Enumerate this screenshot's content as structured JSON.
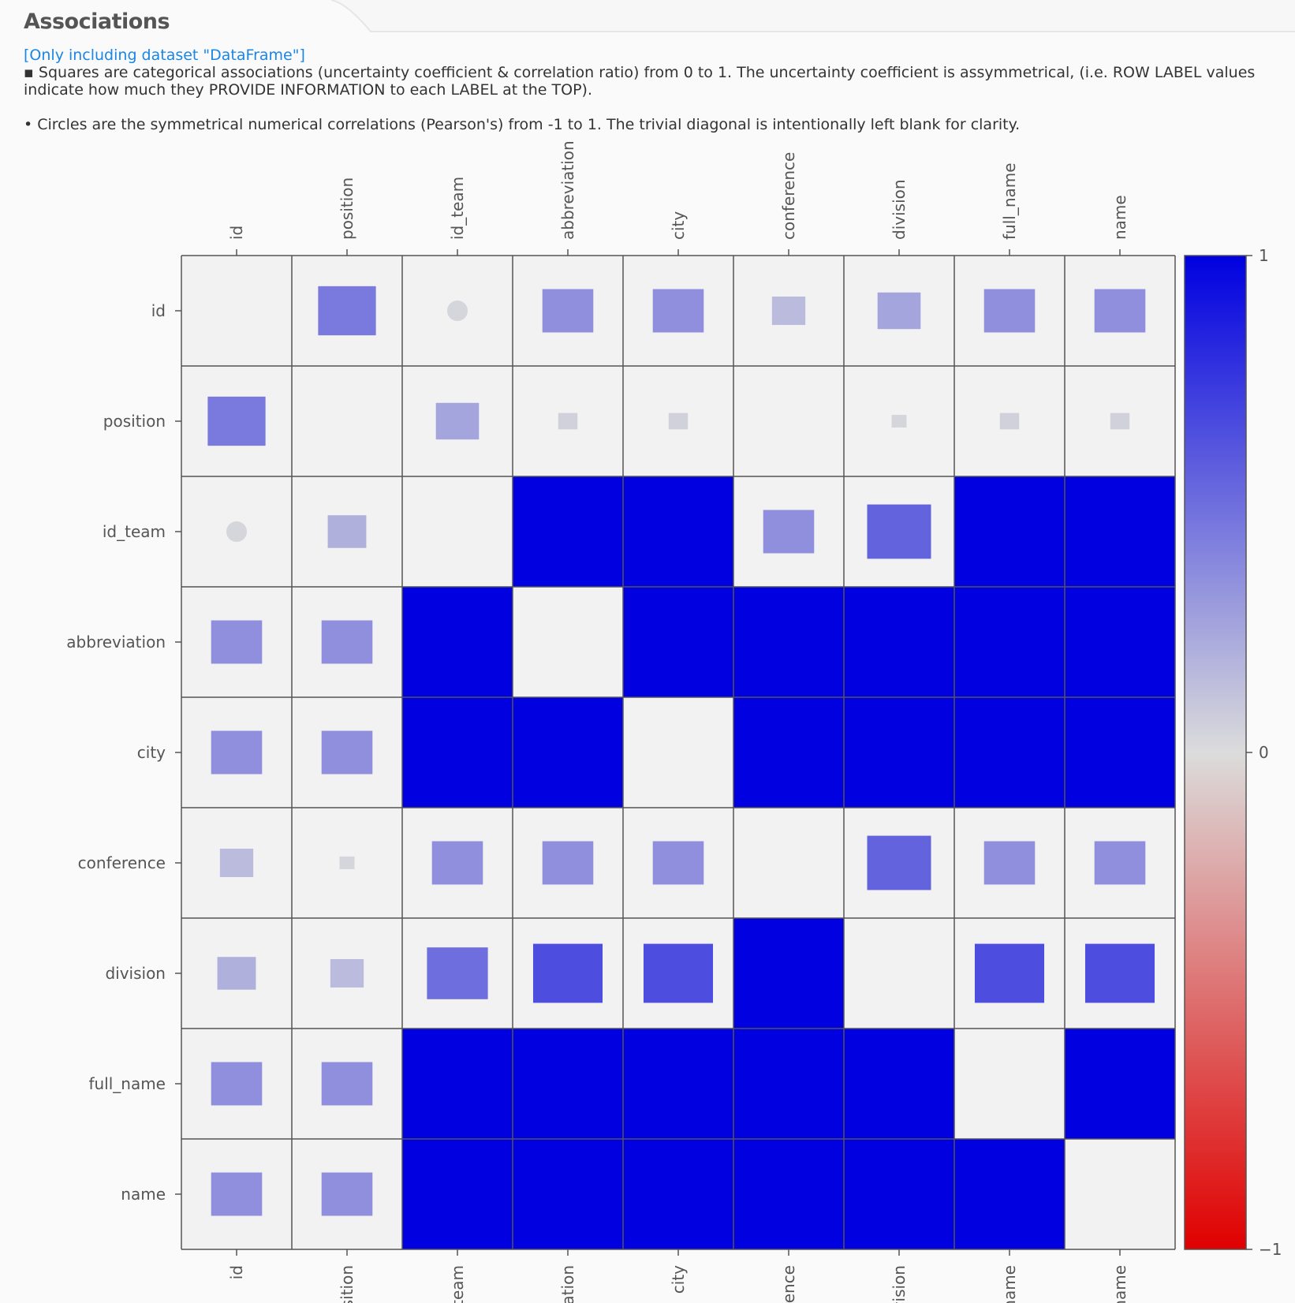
{
  "header": {
    "title": "Associations",
    "dataset_note": "[Only including dataset \"DataFrame\"]",
    "desc_squares": "▪ Squares are categorical associations (uncertainty coefficient & correlation ratio) from 0 to 1. The uncertainty coefficient is assymmetrical, (i.e. ROW LABEL values indicate how much they PROVIDE INFORMATION to each LABEL at the TOP).",
    "desc_circles": "• Circles are the symmetrical numerical correlations (Pearson's) from -1 to 1. The trivial diagonal is intentionally left blank for clarity."
  },
  "colors": {
    "positive": "#0000e0",
    "neutral": "#dcdcdc",
    "negative": "#e00000",
    "grid": "#555555",
    "cell_bg": "#f2f2f2"
  },
  "chart_data": {
    "type": "heatmap",
    "labels": [
      "id",
      "position",
      "id_team",
      "abbreviation",
      "city",
      "conference",
      "division",
      "full_name",
      "name"
    ],
    "colorbar": {
      "ticks": [
        {
          "value": 1,
          "label": "1"
        },
        {
          "value": 0,
          "label": "0"
        },
        {
          "value": -1,
          "label": "−1"
        }
      ],
      "range": [
        -1,
        1
      ]
    },
    "rows": [
      {
        "label": "id",
        "values": [
          null,
          0.45,
          0.03,
          0.35,
          0.35,
          0.15,
          0.25,
          0.35,
          0.35
        ],
        "kinds": [
          "none",
          "square",
          "circle",
          "square",
          "square",
          "square",
          "square",
          "square",
          "square"
        ]
      },
      {
        "label": "position",
        "values": [
          0.45,
          null,
          0.25,
          0.05,
          0.05,
          0.0,
          0.03,
          0.05,
          0.05
        ],
        "kinds": [
          "square",
          "none",
          "square",
          "square",
          "square",
          "square",
          "square",
          "square",
          "square"
        ]
      },
      {
        "label": "id_team",
        "values": [
          0.03,
          0.2,
          null,
          1.0,
          1.0,
          0.35,
          0.55,
          1.0,
          1.0
        ],
        "kinds": [
          "circle",
          "square",
          "none",
          "square",
          "square",
          "square",
          "square",
          "square",
          "square"
        ]
      },
      {
        "label": "abbreviation",
        "values": [
          0.35,
          0.35,
          1.0,
          null,
          1.0,
          1.0,
          1.0,
          1.0,
          1.0
        ],
        "kinds": [
          "square",
          "square",
          "square",
          "none",
          "square",
          "square",
          "square",
          "square",
          "square"
        ]
      },
      {
        "label": "city",
        "values": [
          0.35,
          0.35,
          1.0,
          1.0,
          null,
          1.0,
          1.0,
          1.0,
          1.0
        ],
        "kinds": [
          "square",
          "square",
          "square",
          "square",
          "none",
          "square",
          "square",
          "square",
          "square"
        ]
      },
      {
        "label": "conference",
        "values": [
          0.15,
          0.03,
          0.35,
          0.35,
          0.35,
          null,
          0.55,
          0.35,
          0.35
        ],
        "kinds": [
          "square",
          "square",
          "square",
          "square",
          "square",
          "none",
          "square",
          "square",
          "square"
        ]
      },
      {
        "label": "division",
        "values": [
          0.2,
          0.15,
          0.5,
          0.65,
          0.65,
          1.0,
          null,
          0.65,
          0.65
        ],
        "kinds": [
          "square",
          "square",
          "square",
          "square",
          "square",
          "square",
          "none",
          "square",
          "square"
        ]
      },
      {
        "label": "full_name",
        "values": [
          0.35,
          0.35,
          1.0,
          1.0,
          1.0,
          1.0,
          1.0,
          null,
          1.0
        ],
        "kinds": [
          "square",
          "square",
          "square",
          "square",
          "square",
          "square",
          "square",
          "none",
          "square"
        ]
      },
      {
        "label": "name",
        "values": [
          0.35,
          0.35,
          1.0,
          1.0,
          1.0,
          1.0,
          1.0,
          1.0,
          null
        ],
        "kinds": [
          "square",
          "square",
          "square",
          "square",
          "square",
          "square",
          "square",
          "square",
          "none"
        ]
      }
    ]
  }
}
